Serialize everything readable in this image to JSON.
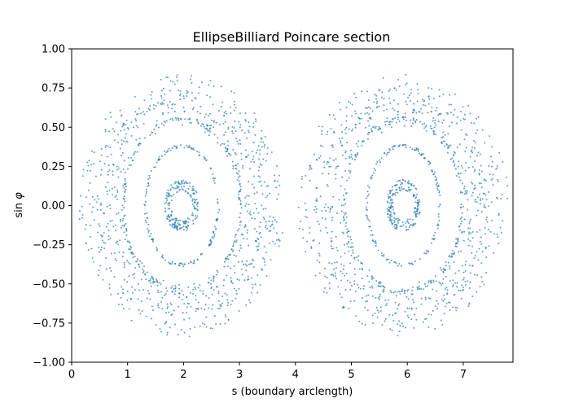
{
  "chart_data": {
    "type": "scatter",
    "title": "EllipseBilliard Poincare section",
    "xlabel": "s (boundary arclength)",
    "ylabel_prefix": "sin",
    "ylabel_symbol": "φ",
    "xlim": [
      0,
      7.89
    ],
    "ylim": [
      -1.0,
      1.0
    ],
    "xticks": [
      0,
      1,
      2,
      3,
      4,
      5,
      6,
      7
    ],
    "xtick_labels": [
      "0",
      "1",
      "2",
      "3",
      "4",
      "5",
      "6",
      "7"
    ],
    "yticks": [
      -1.0,
      -0.75,
      -0.5,
      -0.25,
      0.0,
      0.25,
      0.5,
      0.75,
      1.0
    ],
    "ytick_labels": [
      "−1.00",
      "−0.75",
      "−0.50",
      "−0.25",
      "0.00",
      "0.25",
      "0.50",
      "0.75",
      "1.00"
    ],
    "grid": false,
    "point_color": "#1f77b4",
    "islands": [
      {
        "center_s": 1.97,
        "orbits": [
          {
            "ds": 0.28,
            "dy": 0.15,
            "points": 110,
            "jitter": 0.004
          },
          {
            "ds": 0.22,
            "dy": 0.11,
            "points": 80,
            "jitter": 0.004
          },
          {
            "ds": 0.65,
            "dy": 0.38,
            "points": 150,
            "jitter": 0.003
          },
          {
            "ds": 1.05,
            "dy": 0.55,
            "points": 180,
            "jitter": 0.004
          },
          {
            "ds": 1.3,
            "dy": 0.62,
            "points": 260,
            "jitter": 0.03
          },
          {
            "ds": 1.45,
            "dy": 0.68,
            "points": 300,
            "jitter": 0.04
          },
          {
            "ds": 1.58,
            "dy": 0.72,
            "points": 240,
            "jitter": 0.03
          }
        ]
      },
      {
        "center_s": 5.93,
        "orbits": [
          {
            "ds": 0.28,
            "dy": 0.15,
            "points": 110,
            "jitter": 0.004
          },
          {
            "ds": 0.22,
            "dy": 0.11,
            "points": 80,
            "jitter": 0.004
          },
          {
            "ds": 0.65,
            "dy": 0.38,
            "points": 150,
            "jitter": 0.003
          },
          {
            "ds": 1.05,
            "dy": 0.55,
            "points": 180,
            "jitter": 0.004
          },
          {
            "ds": 1.3,
            "dy": 0.62,
            "points": 260,
            "jitter": 0.03
          },
          {
            "ds": 1.45,
            "dy": 0.68,
            "points": 300,
            "jitter": 0.04
          },
          {
            "ds": 1.62,
            "dy": 0.72,
            "points": 240,
            "jitter": 0.03
          }
        ]
      }
    ]
  }
}
